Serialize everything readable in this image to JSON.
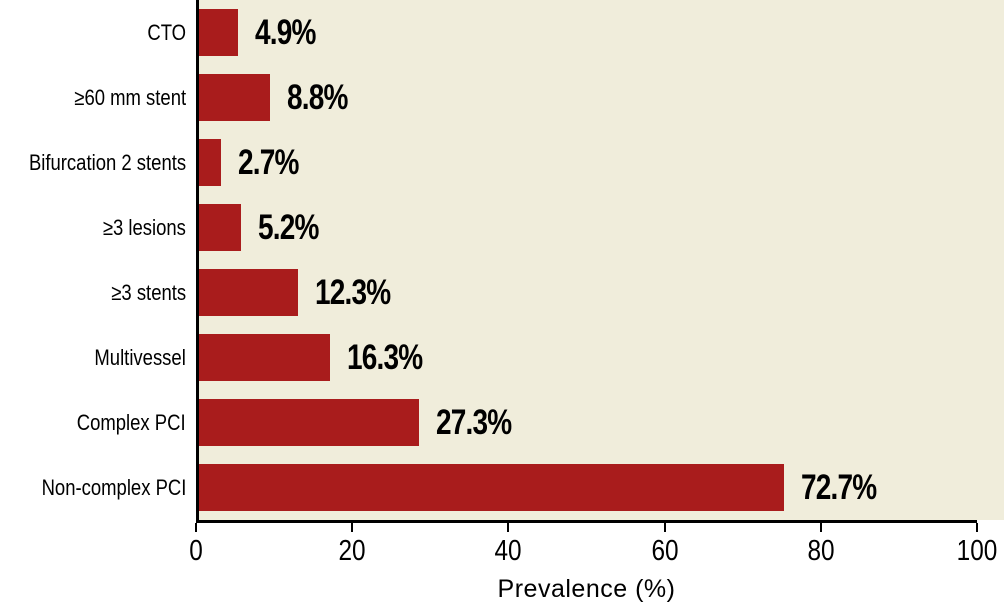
{
  "chart_data": {
    "type": "bar",
    "orientation": "horizontal",
    "categories": [
      "CTO",
      "≥60 mm stent",
      "Bifurcation 2 stents",
      "≥3 lesions",
      "≥3 stents",
      "Multivessel",
      "Complex PCI",
      "Non-complex PCI"
    ],
    "values": [
      4.9,
      8.8,
      2.7,
      5.2,
      12.3,
      16.3,
      27.3,
      72.7
    ],
    "value_labels": [
      "4.9%",
      "8.8%",
      "2.7%",
      "5.2%",
      "12.3%",
      "16.3%",
      "27.3%",
      "72.7%"
    ],
    "title": "",
    "xlabel": "Prevalence (%)",
    "ylabel": "",
    "xlim": [
      0,
      100
    ],
    "xticks": [
      0,
      20,
      40,
      60,
      80,
      100
    ],
    "grid": false,
    "legend": null,
    "colors": {
      "bar": "#A91C1C",
      "plot_background": "#F0EDDB",
      "page_background": "#FFFFFF",
      "axis": "#000000",
      "text": "#000000"
    }
  }
}
